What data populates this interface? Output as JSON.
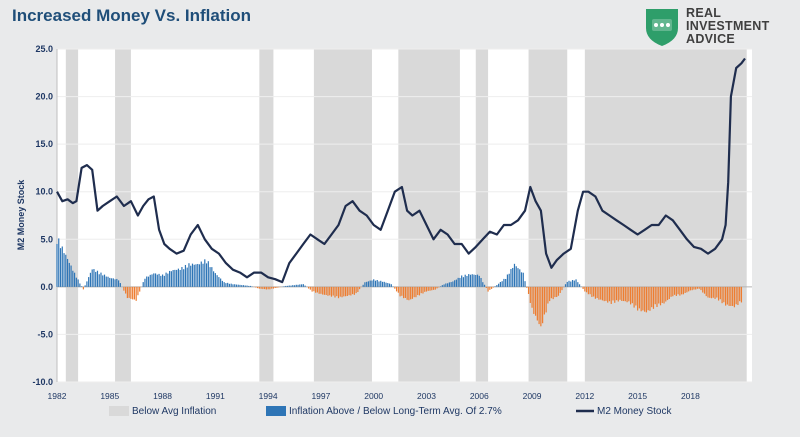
{
  "title": "Increased Money Vs. Inflation",
  "logo": {
    "line1": "REAL",
    "line2": "INVESTMENT",
    "line3": "ADVICE",
    "icon": "shield-chat-icon",
    "color": "#2e9e6a"
  },
  "chart_data": {
    "type": "bar+line",
    "ylabel": "M2 Money Stock",
    "ylim": [
      -10,
      25
    ],
    "yticks": [
      "25.0",
      "20.0",
      "15.0",
      "10.0",
      "5.0",
      "0.0",
      "-5.0",
      "-10.0"
    ],
    "xlim": [
      1982,
      2021.5
    ],
    "xticks": [
      "1982",
      "1985",
      "1988",
      "1991",
      "1994",
      "1997",
      "2000",
      "2003",
      "2006",
      "2009",
      "2012",
      "2015",
      "2018"
    ],
    "legend": [
      "Below Avg Inflation",
      "Inflation Above / Below Long-Term Avg. Of 2.7%",
      "M2 Money Stock"
    ],
    "legend_position": "bottom",
    "colors": {
      "shade": "#d9d9d9",
      "above": "#2e75b6",
      "below": "#ed7d31",
      "m2": "#1f2d4e",
      "axis": "#bfbfbf"
    },
    "below_avg_periods": [
      [
        1982.5,
        1983.2
      ],
      [
        1985.3,
        1986.2
      ],
      [
        1993.5,
        1994.3
      ],
      [
        1996.6,
        1999.9
      ],
      [
        2001.4,
        2004.9
      ],
      [
        2005.8,
        2006.5
      ],
      [
        2008.8,
        2011.0
      ],
      [
        2012.0,
        2021.2
      ]
    ],
    "inflation_gap": {
      "x": [
        1982.0,
        1982.5,
        1983.0,
        1983.5,
        1984.0,
        1984.5,
        1985.0,
        1985.5,
        1986.0,
        1986.5,
        1987.0,
        1987.5,
        1988.0,
        1988.5,
        1989.0,
        1989.5,
        1990.0,
        1990.5,
        1991.0,
        1991.5,
        1992.0,
        1992.5,
        1993.0,
        1993.5,
        1994.0,
        1994.5,
        1995.0,
        1995.5,
        1996.0,
        1996.5,
        1997.0,
        1997.5,
        1998.0,
        1998.5,
        1999.0,
        1999.5,
        2000.0,
        2000.5,
        2001.0,
        2001.5,
        2002.0,
        2002.5,
        2003.0,
        2003.5,
        2004.0,
        2004.5,
        2005.0,
        2005.5,
        2006.0,
        2006.5,
        2007.0,
        2007.5,
        2008.0,
        2008.5,
        2009.0,
        2009.5,
        2010.0,
        2010.5,
        2011.0,
        2011.5,
        2012.0,
        2012.5,
        2013.0,
        2013.5,
        2014.0,
        2014.5,
        2015.0,
        2015.5,
        2016.0,
        2016.5,
        2017.0,
        2017.5,
        2018.0,
        2018.5,
        2019.0,
        2019.5,
        2020.0,
        2020.5,
        2021.0
      ],
      "values": [
        5.5,
        3.5,
        1.5,
        -0.3,
        2.0,
        1.5,
        1.0,
        0.8,
        -1.2,
        -1.5,
        1.0,
        1.5,
        1.3,
        1.8,
        2.0,
        2.5,
        2.5,
        3.0,
        1.5,
        0.5,
        0.3,
        0.2,
        0.1,
        -0.2,
        -0.3,
        -0.1,
        0.1,
        0.2,
        0.3,
        -0.5,
        -0.8,
        -1.0,
        -1.2,
        -1.0,
        -0.8,
        0.5,
        0.8,
        0.6,
        0.3,
        -1.0,
        -1.5,
        -1.0,
        -0.5,
        -0.3,
        0.3,
        0.6,
        1.2,
        1.4,
        1.3,
        -0.5,
        0.2,
        1.0,
        2.5,
        1.5,
        -2.5,
        -4.5,
        -1.5,
        -1.0,
        0.6,
        0.8,
        -0.5,
        -1.2,
        -1.5,
        -1.8,
        -1.5,
        -1.7,
        -2.5,
        -2.8,
        -2.2,
        -1.8,
        -1.0,
        -0.9,
        -0.4,
        -0.2,
        -1.2,
        -1.3,
        -2.0,
        -2.2,
        -1.5
      ]
    },
    "m2_series": {
      "name": "M2 Money Stock",
      "x": [
        1982.0,
        1982.3,
        1982.6,
        1982.9,
        1983.1,
        1983.4,
        1983.7,
        1984.0,
        1984.3,
        1984.6,
        1985.0,
        1985.4,
        1985.8,
        1986.2,
        1986.6,
        1986.9,
        1987.2,
        1987.5,
        1987.8,
        1988.1,
        1988.4,
        1988.8,
        1989.2,
        1989.6,
        1990.0,
        1990.4,
        1990.8,
        1991.2,
        1991.6,
        1992.0,
        1992.4,
        1992.8,
        1993.2,
        1993.6,
        1994.0,
        1994.4,
        1994.8,
        1995.2,
        1995.6,
        1996.0,
        1996.4,
        1996.8,
        1997.2,
        1997.6,
        1998.0,
        1998.4,
        1998.8,
        1999.2,
        1999.6,
        2000.0,
        2000.4,
        2000.8,
        2001.2,
        2001.6,
        2001.9,
        2002.2,
        2002.6,
        2003.0,
        2003.4,
        2003.8,
        2004.2,
        2004.6,
        2005.0,
        2005.4,
        2005.8,
        2006.2,
        2006.6,
        2007.0,
        2007.4,
        2007.8,
        2008.2,
        2008.6,
        2008.9,
        2009.2,
        2009.5,
        2009.8,
        2010.1,
        2010.4,
        2010.8,
        2011.2,
        2011.6,
        2011.9,
        2012.2,
        2012.6,
        2013.0,
        2013.4,
        2013.8,
        2014.2,
        2014.6,
        2015.0,
        2015.4,
        2015.8,
        2016.2,
        2016.6,
        2017.0,
        2017.4,
        2017.8,
        2018.2,
        2018.6,
        2019.0,
        2019.4,
        2019.8,
        2020.0,
        2020.15,
        2020.3,
        2020.6,
        2020.9,
        2021.1
      ],
      "values": [
        10.0,
        9.0,
        9.2,
        8.8,
        9.0,
        12.5,
        12.8,
        12.3,
        8.0,
        8.5,
        9.0,
        9.5,
        8.5,
        9.0,
        7.5,
        8.5,
        9.2,
        9.5,
        6.0,
        4.5,
        4.0,
        3.5,
        3.8,
        5.5,
        6.5,
        5.0,
        4.0,
        3.5,
        2.5,
        1.8,
        1.5,
        1.0,
        1.5,
        1.5,
        1.0,
        0.8,
        0.5,
        2.5,
        3.5,
        4.5,
        5.5,
        5.0,
        4.5,
        5.5,
        6.5,
        8.5,
        9.0,
        8.0,
        7.5,
        6.5,
        6.0,
        8.0,
        10.0,
        10.5,
        8.0,
        7.5,
        8.0,
        6.5,
        5.0,
        6.0,
        5.5,
        4.5,
        4.5,
        3.5,
        4.2,
        5.0,
        5.8,
        5.5,
        6.5,
        6.5,
        7.0,
        8.0,
        10.5,
        9.0,
        8.0,
        3.5,
        2.0,
        2.8,
        3.5,
        4.0,
        8.0,
        10.0,
        10.0,
        9.5,
        8.0,
        7.5,
        7.0,
        6.5,
        6.0,
        5.5,
        6.0,
        6.5,
        6.5,
        7.5,
        7.0,
        6.0,
        5.0,
        4.2,
        4.0,
        3.5,
        4.0,
        5.0,
        6.5,
        11.0,
        20.0,
        23.0,
        23.5,
        24.0
      ]
    }
  }
}
